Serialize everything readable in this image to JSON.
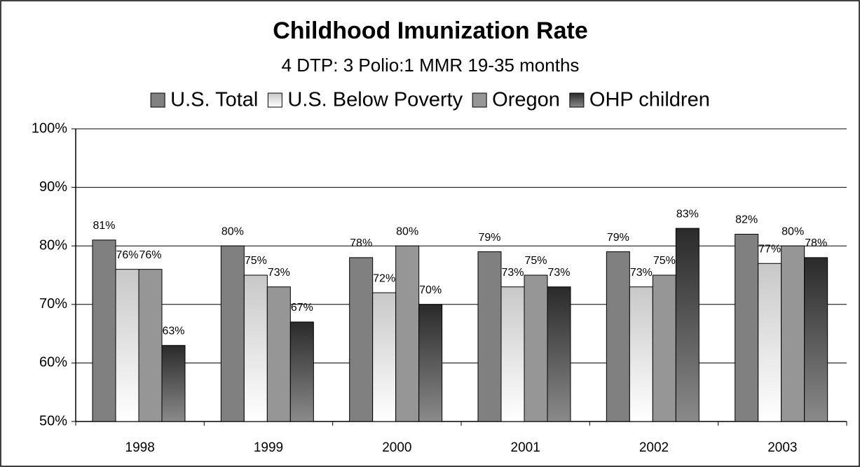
{
  "chart_data": {
    "type": "bar",
    "title": "Childhood Imunization Rate",
    "subtitle": "4 DTP: 3 Polio:1 MMR 19-35 months",
    "categories": [
      "1998",
      "1999",
      "2000",
      "2001",
      "2002",
      "2003"
    ],
    "series": [
      {
        "name": "U.S. Total",
        "color": "#808080",
        "gradient": false,
        "values": [
          81,
          80,
          78,
          79,
          79,
          82
        ],
        "value_labels": [
          "81%",
          "80%",
          "78%",
          "79%",
          "79%",
          "82%"
        ]
      },
      {
        "name": "U.S. Below Poverty",
        "color": "#c8c8c8",
        "gradient": true,
        "values": [
          76,
          75,
          72,
          73,
          73,
          77
        ],
        "value_labels": [
          "76%",
          "75%",
          "72%",
          "73%",
          "73%",
          "77%"
        ]
      },
      {
        "name": "Oregon",
        "color": "#969696",
        "gradient": false,
        "values": [
          76,
          73,
          80,
          75,
          75,
          80
        ],
        "value_labels": [
          "76%",
          "73%",
          "80%",
          "75%",
          "75%",
          "80%"
        ]
      },
      {
        "name": "OHP children",
        "color": "#2a2a2a",
        "gradient": true,
        "values": [
          63,
          67,
          70,
          73,
          83,
          78
        ],
        "value_labels": [
          "63%",
          "67%",
          "70%",
          "73%",
          "83%",
          "78%"
        ]
      }
    ],
    "ylim": [
      50,
      100
    ],
    "yticks": [
      {
        "value": 50,
        "label": "50%"
      },
      {
        "value": 60,
        "label": "60%"
      },
      {
        "value": 70,
        "label": "70%"
      },
      {
        "value": 80,
        "label": "80%"
      },
      {
        "value": 90,
        "label": "90%"
      },
      {
        "value": 100,
        "label": "100%"
      }
    ],
    "grid": true,
    "legend": "top"
  }
}
